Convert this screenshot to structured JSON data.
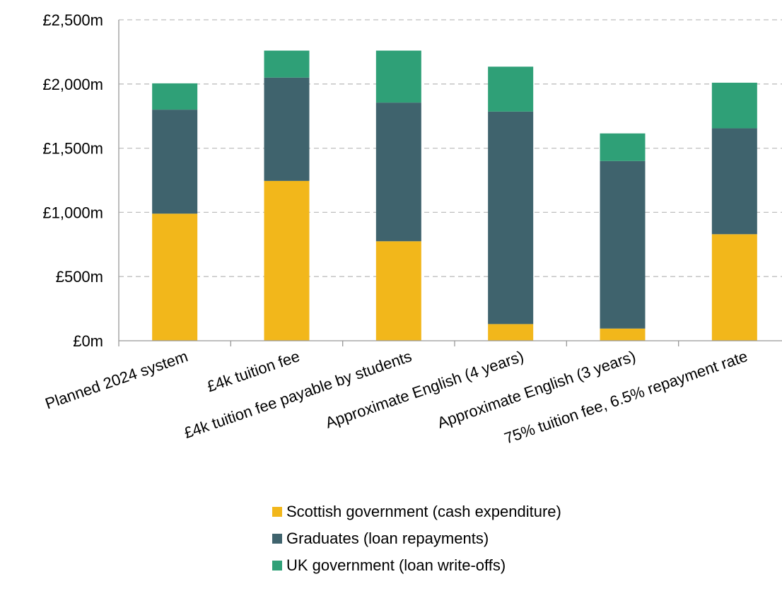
{
  "chart_data": {
    "type": "bar",
    "stacked": true,
    "title": "",
    "xlabel": "",
    "ylabel": "",
    "ylim": [
      0,
      2500
    ],
    "yticks": [
      0,
      500,
      1000,
      1500,
      2000,
      2500
    ],
    "ytick_labels": [
      "£0m",
      "£500m",
      "£1,000m",
      "£1,500m",
      "£2,000m",
      "£2,500m"
    ],
    "grid": true,
    "legend_position": "bottom",
    "categories": [
      "Planned 2024 system",
      "£4k tuition fee",
      "£4k tuition fee payable by students",
      "Approximate English (4 years)",
      "Approximate English (3 years)",
      "75% tuition fee, 6.5% repayment rate"
    ],
    "series": [
      {
        "name": "Scottish government (cash expenditure)",
        "color": "#f2b71b",
        "values": [
          990,
          1245,
          775,
          130,
          95,
          830
        ]
      },
      {
        "name": "Graduates (loan repayments)",
        "color": "#3f636d",
        "values": [
          810,
          805,
          1080,
          1655,
          1305,
          825
        ]
      },
      {
        "name": "UK government (loan write-offs)",
        "color": "#2fa077",
        "values": [
          205,
          210,
          405,
          350,
          215,
          355
        ]
      }
    ]
  }
}
